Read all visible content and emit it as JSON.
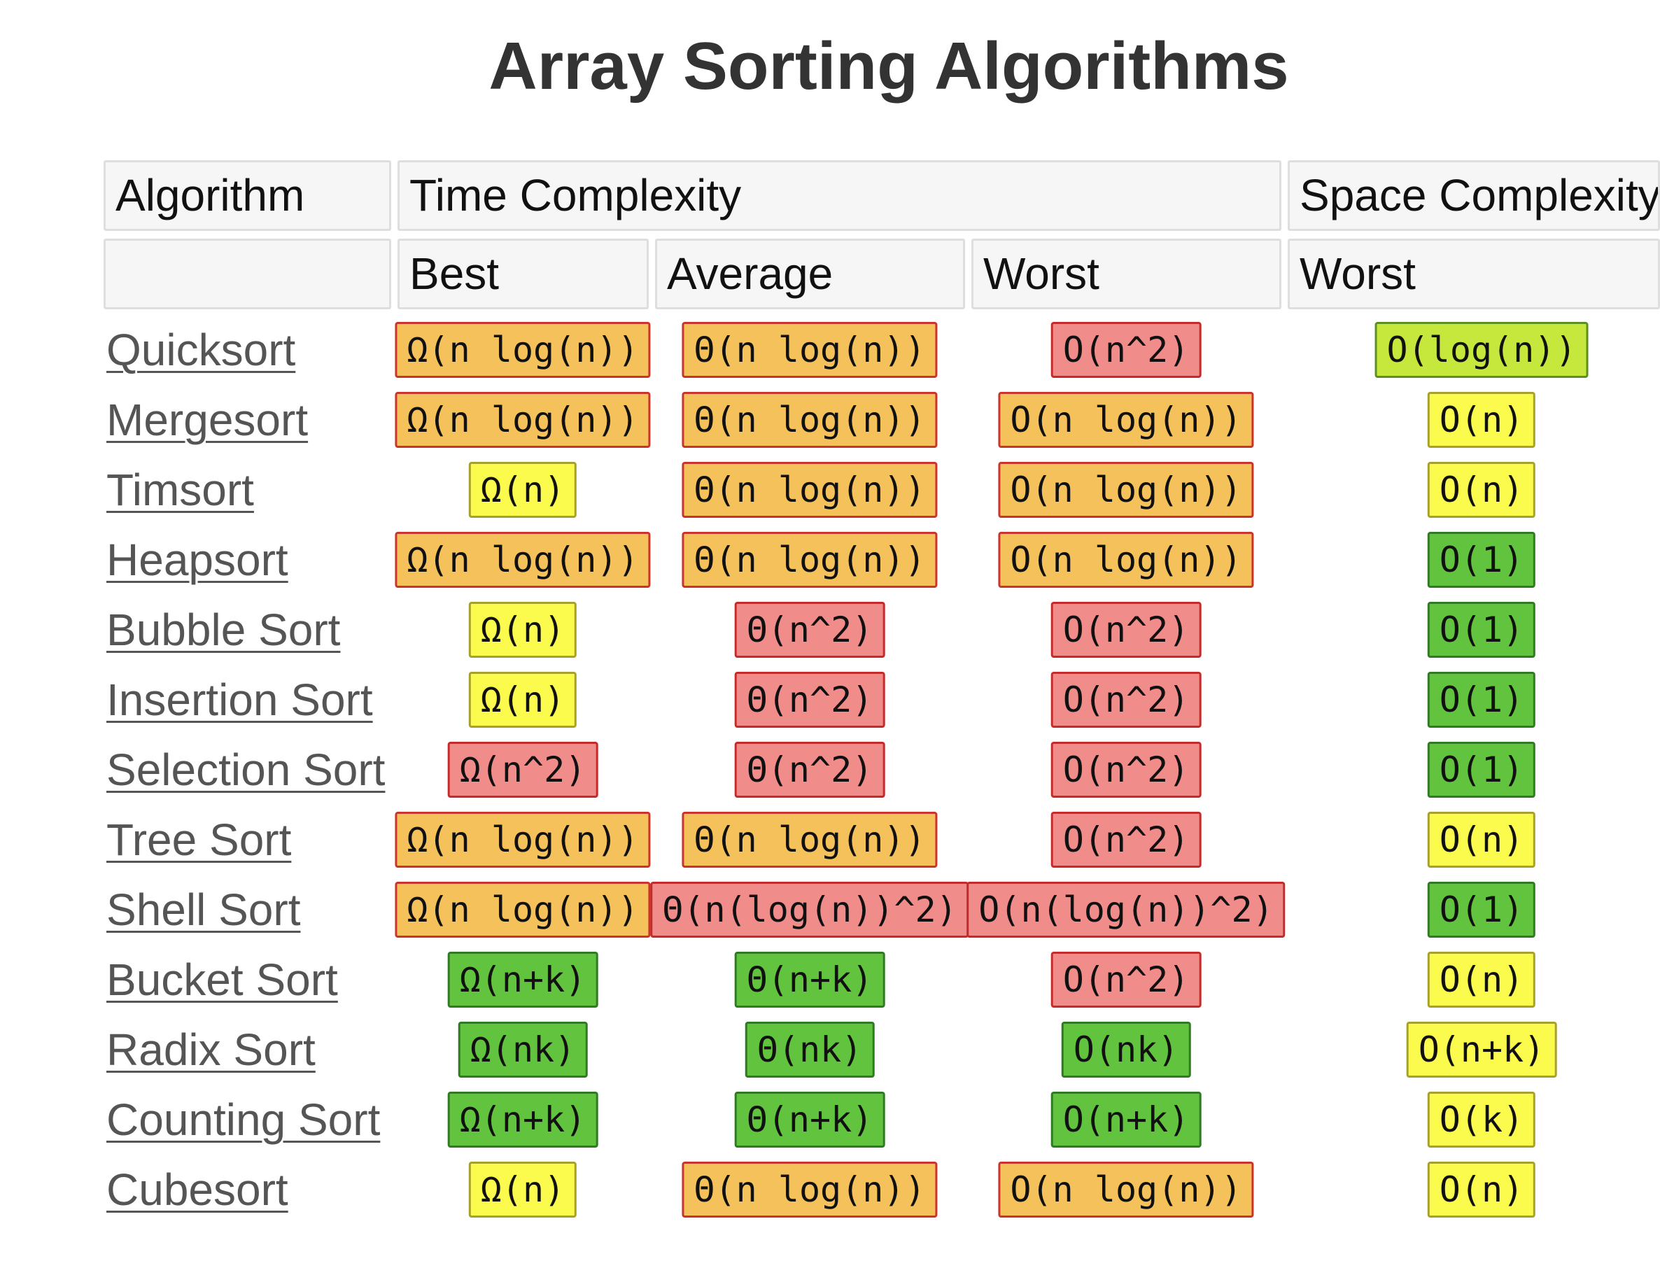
{
  "title": "Array Sorting Algorithms",
  "headers": {
    "algorithm": "Algorithm",
    "time_complexity": "Time Complexity",
    "space_complexity": "Space Complexity",
    "best": "Best",
    "average": "Average",
    "worst": "Worst",
    "space_worst": "Worst"
  },
  "colors": {
    "orange": "#f4c15a",
    "red": "#f08c8a",
    "yellow": "#fbfb4e",
    "lime": "#c6e83d",
    "green": "#62c43e"
  },
  "rows": [
    {
      "name": "Quicksort",
      "best": {
        "text": "Ω(n log(n))",
        "color": "orange"
      },
      "average": {
        "text": "Θ(n log(n))",
        "color": "orange"
      },
      "worst": {
        "text": "O(n^2)",
        "color": "red"
      },
      "space": {
        "text": "O(log(n))",
        "color": "lime"
      }
    },
    {
      "name": "Mergesort",
      "best": {
        "text": "Ω(n log(n))",
        "color": "orange"
      },
      "average": {
        "text": "Θ(n log(n))",
        "color": "orange"
      },
      "worst": {
        "text": "O(n log(n))",
        "color": "orange"
      },
      "space": {
        "text": "O(n)",
        "color": "yellow"
      }
    },
    {
      "name": "Timsort",
      "best": {
        "text": "Ω(n)",
        "color": "yellow"
      },
      "average": {
        "text": "Θ(n log(n))",
        "color": "orange"
      },
      "worst": {
        "text": "O(n log(n))",
        "color": "orange"
      },
      "space": {
        "text": "O(n)",
        "color": "yellow"
      }
    },
    {
      "name": "Heapsort",
      "best": {
        "text": "Ω(n log(n))",
        "color": "orange"
      },
      "average": {
        "text": "Θ(n log(n))",
        "color": "orange"
      },
      "worst": {
        "text": "O(n log(n))",
        "color": "orange"
      },
      "space": {
        "text": "O(1)",
        "color": "green"
      }
    },
    {
      "name": "Bubble Sort",
      "best": {
        "text": "Ω(n)",
        "color": "yellow"
      },
      "average": {
        "text": "Θ(n^2)",
        "color": "red"
      },
      "worst": {
        "text": "O(n^2)",
        "color": "red"
      },
      "space": {
        "text": "O(1)",
        "color": "green"
      }
    },
    {
      "name": "Insertion Sort",
      "best": {
        "text": "Ω(n)",
        "color": "yellow"
      },
      "average": {
        "text": "Θ(n^2)",
        "color": "red"
      },
      "worst": {
        "text": "O(n^2)",
        "color": "red"
      },
      "space": {
        "text": "O(1)",
        "color": "green"
      }
    },
    {
      "name": "Selection Sort",
      "best": {
        "text": "Ω(n^2)",
        "color": "red"
      },
      "average": {
        "text": "Θ(n^2)",
        "color": "red"
      },
      "worst": {
        "text": "O(n^2)",
        "color": "red"
      },
      "space": {
        "text": "O(1)",
        "color": "green"
      }
    },
    {
      "name": "Tree Sort",
      "best": {
        "text": "Ω(n log(n))",
        "color": "orange"
      },
      "average": {
        "text": "Θ(n log(n))",
        "color": "orange"
      },
      "worst": {
        "text": "O(n^2)",
        "color": "red"
      },
      "space": {
        "text": "O(n)",
        "color": "yellow"
      }
    },
    {
      "name": "Shell Sort",
      "best": {
        "text": "Ω(n log(n))",
        "color": "orange"
      },
      "average": {
        "text": "Θ(n(log(n))^2)",
        "color": "red"
      },
      "worst": {
        "text": "O(n(log(n))^2)",
        "color": "red"
      },
      "space": {
        "text": "O(1)",
        "color": "green"
      }
    },
    {
      "name": "Bucket Sort",
      "best": {
        "text": "Ω(n+k)",
        "color": "green"
      },
      "average": {
        "text": "Θ(n+k)",
        "color": "green"
      },
      "worst": {
        "text": "O(n^2)",
        "color": "red"
      },
      "space": {
        "text": "O(n)",
        "color": "yellow"
      }
    },
    {
      "name": "Radix Sort",
      "best": {
        "text": "Ω(nk)",
        "color": "green"
      },
      "average": {
        "text": "Θ(nk)",
        "color": "green"
      },
      "worst": {
        "text": "O(nk)",
        "color": "green"
      },
      "space": {
        "text": "O(n+k)",
        "color": "yellow"
      }
    },
    {
      "name": "Counting Sort",
      "best": {
        "text": "Ω(n+k)",
        "color": "green"
      },
      "average": {
        "text": "Θ(n+k)",
        "color": "green"
      },
      "worst": {
        "text": "O(n+k)",
        "color": "green"
      },
      "space": {
        "text": "O(k)",
        "color": "yellow"
      }
    },
    {
      "name": "Cubesort",
      "best": {
        "text": "Ω(n)",
        "color": "yellow"
      },
      "average": {
        "text": "Θ(n log(n))",
        "color": "orange"
      },
      "worst": {
        "text": "O(n log(n))",
        "color": "orange"
      },
      "space": {
        "text": "O(n)",
        "color": "yellow"
      }
    }
  ]
}
